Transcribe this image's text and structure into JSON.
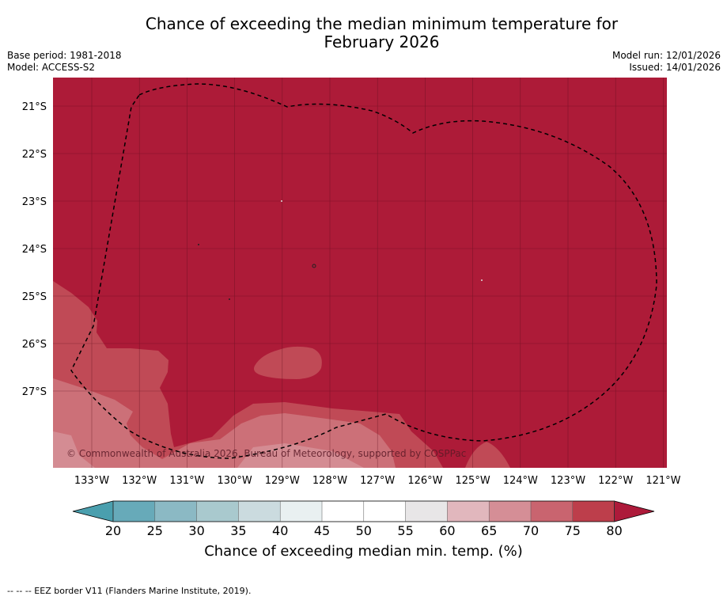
{
  "title_line1": "Chance of exceeding the median minimum temperature for",
  "title_line2": "February 2026",
  "meta_left": [
    "Base period: 1981-2018",
    "Model: ACCESS-S2"
  ],
  "meta_right": [
    "Model run: 12/01/2026",
    "Issued: 14/01/2026"
  ],
  "lat_labels": [
    "21°S",
    "22°S",
    "23°S",
    "24°S",
    "25°S",
    "26°S",
    "27°S"
  ],
  "lon_labels": [
    "133°W",
    "132°W",
    "131°W",
    "130°W",
    "129°W",
    "128°W",
    "127°W",
    "126°W",
    "125°W",
    "124°W",
    "123°W",
    "122°W",
    "121°W"
  ],
  "copyright": "© Commonwealth of Australia 2026, Bureau of Meteorology, supported by COSPPac",
  "colorbar": {
    "ticks": [
      "20",
      "25",
      "30",
      "35",
      "40",
      "45",
      "50",
      "55",
      "60",
      "65",
      "70",
      "75",
      "80"
    ],
    "colors": [
      "#67aab9",
      "#8bb9c4",
      "#a9c9ce",
      "#cbdbdf",
      "#e9f0f1",
      "#ffffff",
      "#ffffff",
      "#e8e6e7",
      "#e1b7bd",
      "#d58e96",
      "#c9646f",
      "#bd3e4b"
    ],
    "under_color": "#4a9fae",
    "over_color": "#ad1a3a",
    "label": "Chance of exceeding median min. temp. (%)"
  },
  "footnote": "--  --  -- EEZ border V11 (Flanders Marine Institute, 2019).",
  "map_colors": {
    "dominant": "#ad1b38",
    "band_75_80": "#c04a56",
    "band_70_75": "#cc7078",
    "band_65_70": "#d48c93"
  }
}
